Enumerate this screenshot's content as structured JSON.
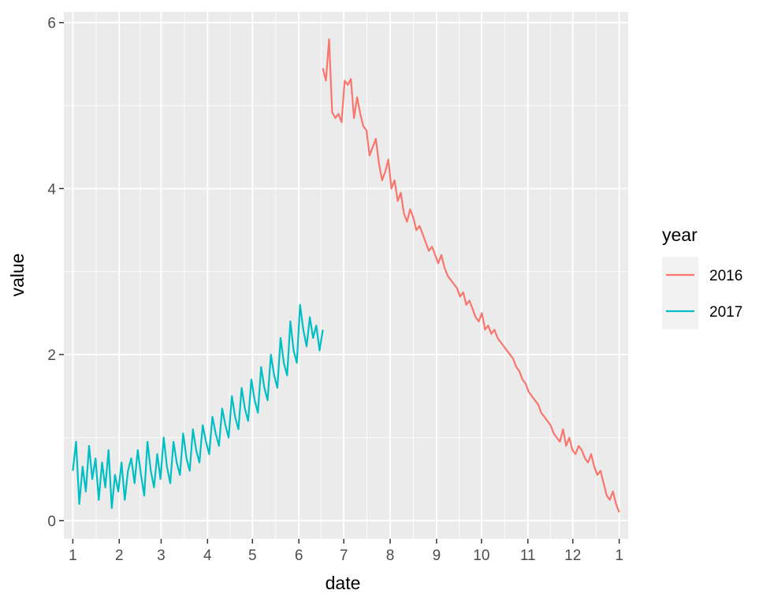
{
  "chart_data": {
    "type": "line",
    "xlabel": "date",
    "ylabel": "value",
    "legend_title": "year",
    "legend_position": "right",
    "grid": true,
    "x_tick_labels": [
      "1",
      "2",
      "3",
      "4",
      "5",
      "6",
      "7",
      "8",
      "9",
      "10",
      "11",
      "12",
      "1"
    ],
    "y_ticks": [
      0,
      2,
      4,
      6
    ],
    "y_tick_labels": [
      "0",
      "2",
      "4",
      "6"
    ],
    "ylim": [
      -0.22,
      6.13
    ],
    "xlim_days": [
      -6,
      371
    ],
    "x_ticks_days": [
      0,
      31,
      59,
      90,
      120,
      151,
      181,
      212,
      243,
      273,
      304,
      334,
      365
    ],
    "colors": {
      "panel": "#ebebeb",
      "grid": "#ffffff",
      "tick_text": "#4d4d4d"
    },
    "series": [
      {
        "name": "2016",
        "color": "#F8766D",
        "x_start_day": 167,
        "x_end_day": 365,
        "values": [
          5.45,
          5.3,
          5.8,
          4.92,
          4.85,
          4.9,
          4.8,
          5.3,
          5.25,
          5.32,
          4.85,
          5.1,
          4.9,
          4.75,
          4.7,
          4.4,
          4.5,
          4.6,
          4.3,
          4.1,
          4.2,
          4.35,
          4.0,
          4.1,
          3.85,
          3.95,
          3.7,
          3.6,
          3.75,
          3.65,
          3.5,
          3.55,
          3.45,
          3.35,
          3.25,
          3.3,
          3.2,
          3.1,
          3.2,
          3.05,
          2.95,
          2.9,
          2.85,
          2.8,
          2.7,
          2.75,
          2.6,
          2.65,
          2.55,
          2.45,
          2.4,
          2.5,
          2.3,
          2.35,
          2.25,
          2.3,
          2.2,
          2.15,
          2.1,
          2.05,
          2.0,
          1.95,
          1.85,
          1.8,
          1.7,
          1.65,
          1.55,
          1.5,
          1.45,
          1.4,
          1.3,
          1.25,
          1.2,
          1.15,
          1.05,
          1.0,
          0.95,
          1.1,
          0.9,
          1.0,
          0.85,
          0.8,
          0.9,
          0.85,
          0.75,
          0.7,
          0.8,
          0.65,
          0.55,
          0.6,
          0.45,
          0.3,
          0.25,
          0.35,
          0.2,
          0.1
        ]
      },
      {
        "name": "2017",
        "color": "#00BFC4",
        "x_start_day": 0,
        "x_end_day": 167,
        "values": [
          0.6,
          0.95,
          0.2,
          0.65,
          0.35,
          0.9,
          0.5,
          0.75,
          0.25,
          0.7,
          0.4,
          0.85,
          0.15,
          0.55,
          0.35,
          0.7,
          0.25,
          0.6,
          0.75,
          0.45,
          0.85,
          0.55,
          0.3,
          0.95,
          0.6,
          0.4,
          0.8,
          0.5,
          1.0,
          0.65,
          0.45,
          0.95,
          0.7,
          0.55,
          1.05,
          0.75,
          0.6,
          1.1,
          0.85,
          0.7,
          1.15,
          0.95,
          0.8,
          1.25,
          1.05,
          0.9,
          1.35,
          1.15,
          1.0,
          1.5,
          1.25,
          1.1,
          1.6,
          1.35,
          1.2,
          1.7,
          1.45,
          1.3,
          1.85,
          1.6,
          1.45,
          2.0,
          1.75,
          1.6,
          2.2,
          1.9,
          1.75,
          2.4,
          2.05,
          1.9,
          2.6,
          2.3,
          2.1,
          2.45,
          2.2,
          2.35,
          2.05,
          2.3
        ]
      }
    ]
  }
}
